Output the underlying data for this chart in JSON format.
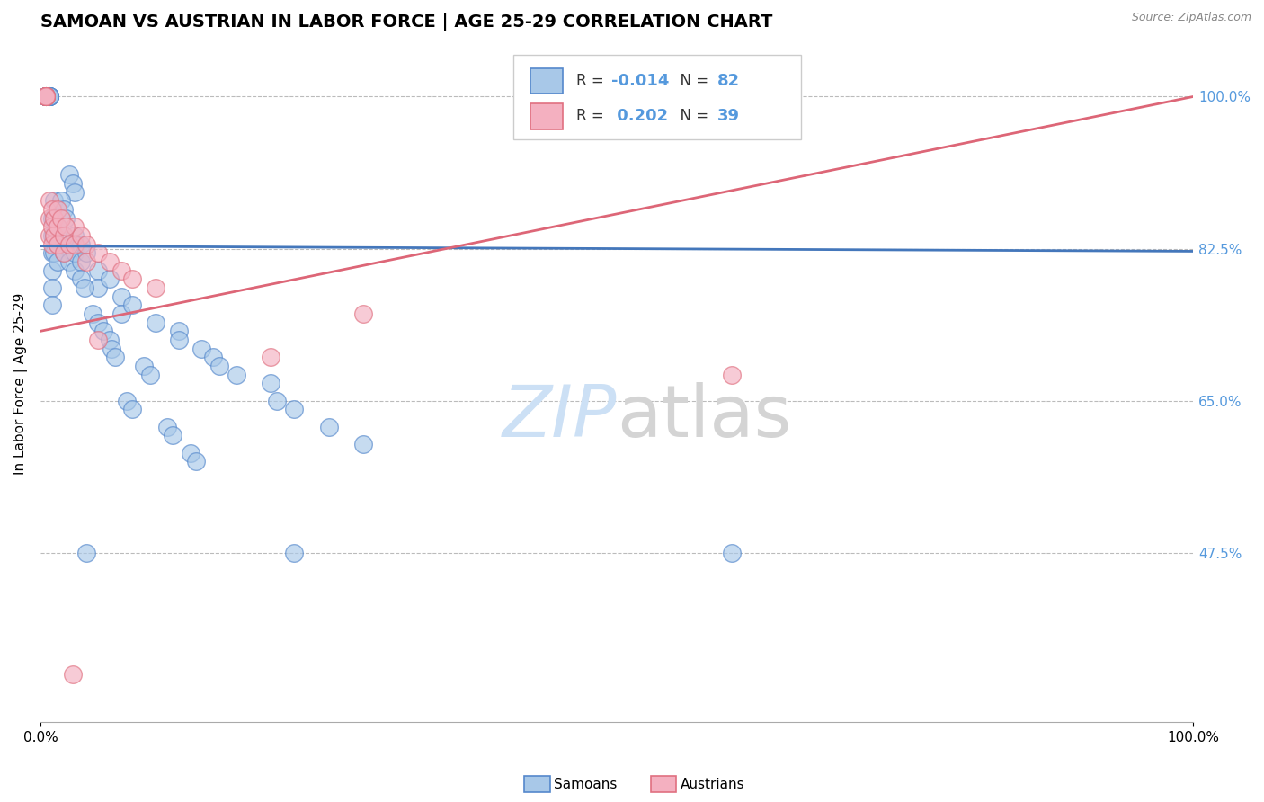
{
  "title": "SAMOAN VS AUSTRIAN IN LABOR FORCE | AGE 25-29 CORRELATION CHART",
  "source": "Source: ZipAtlas.com",
  "ylabel": "In Labor Force | Age 25-29",
  "ytick_values": [
    1.0,
    0.825,
    0.65,
    0.475
  ],
  "ytick_labels": [
    "100.0%",
    "82.5%",
    "65.0%",
    "47.5%"
  ],
  "xlim": [
    0.0,
    1.0
  ],
  "ylim": [
    0.28,
    1.06
  ],
  "samoan_face_color": "#a8c8e8",
  "samoan_edge_color": "#5588cc",
  "austrian_face_color": "#f4b0c0",
  "austrian_edge_color": "#e07080",
  "samoan_line_color": "#4477bb",
  "austrian_line_color": "#dd6677",
  "grid_color": "#bbbbbb",
  "background_color": "#ffffff",
  "right_tick_color": "#5599dd",
  "title_fontsize": 14,
  "label_fontsize": 11,
  "tick_fontsize": 11,
  "samoans_x": [
    0.005,
    0.005,
    0.005,
    0.005,
    0.005,
    0.005,
    0.005,
    0.005,
    0.005,
    0.005,
    0.008,
    0.008,
    0.008,
    0.008,
    0.008,
    0.008,
    0.008,
    0.01,
    0.01,
    0.01,
    0.01,
    0.01,
    0.01,
    0.012,
    0.012,
    0.012,
    0.012,
    0.015,
    0.015,
    0.015,
    0.02,
    0.02,
    0.025,
    0.025,
    0.03,
    0.03,
    0.03,
    0.035,
    0.035,
    0.04,
    0.05,
    0.05,
    0.06,
    0.07,
    0.07,
    0.08,
    0.1,
    0.12,
    0.12,
    0.14,
    0.15,
    0.155,
    0.17,
    0.2,
    0.205,
    0.22,
    0.25,
    0.28,
    0.04,
    0.22,
    0.6,
    0.025,
    0.028,
    0.03,
    0.018,
    0.02,
    0.022,
    0.045,
    0.05,
    0.055,
    0.06,
    0.035,
    0.038,
    0.062,
    0.065,
    0.09,
    0.095,
    0.075,
    0.08,
    0.11,
    0.115,
    0.13,
    0.135
  ],
  "samoans_y": [
    1.0,
    1.0,
    1.0,
    1.0,
    1.0,
    1.0,
    1.0,
    1.0,
    1.0,
    1.0,
    1.0,
    1.0,
    1.0,
    1.0,
    1.0,
    1.0,
    1.0,
    0.86,
    0.84,
    0.82,
    0.8,
    0.78,
    0.76,
    0.88,
    0.86,
    0.84,
    0.82,
    0.85,
    0.83,
    0.81,
    0.84,
    0.82,
    0.83,
    0.81,
    0.84,
    0.82,
    0.8,
    0.83,
    0.81,
    0.82,
    0.8,
    0.78,
    0.79,
    0.77,
    0.75,
    0.76,
    0.74,
    0.73,
    0.72,
    0.71,
    0.7,
    0.69,
    0.68,
    0.67,
    0.65,
    0.64,
    0.62,
    0.6,
    0.475,
    0.475,
    0.475,
    0.91,
    0.9,
    0.89,
    0.88,
    0.87,
    0.86,
    0.75,
    0.74,
    0.73,
    0.72,
    0.79,
    0.78,
    0.71,
    0.7,
    0.69,
    0.68,
    0.65,
    0.64,
    0.62,
    0.61,
    0.59,
    0.58
  ],
  "austrians_x": [
    0.005,
    0.005,
    0.005,
    0.005,
    0.005,
    0.005,
    0.005,
    0.005,
    0.008,
    0.008,
    0.008,
    0.01,
    0.01,
    0.01,
    0.012,
    0.012,
    0.015,
    0.015,
    0.02,
    0.02,
    0.025,
    0.03,
    0.03,
    0.035,
    0.04,
    0.04,
    0.05,
    0.06,
    0.07,
    0.08,
    0.1,
    0.28,
    0.05,
    0.2,
    0.6,
    0.015,
    0.018,
    0.022,
    0.028
  ],
  "austrians_y": [
    1.0,
    1.0,
    1.0,
    1.0,
    1.0,
    1.0,
    1.0,
    1.0,
    0.88,
    0.86,
    0.84,
    0.87,
    0.85,
    0.83,
    0.86,
    0.84,
    0.85,
    0.83,
    0.84,
    0.82,
    0.83,
    0.85,
    0.83,
    0.84,
    0.83,
    0.81,
    0.82,
    0.81,
    0.8,
    0.79,
    0.78,
    0.75,
    0.72,
    0.7,
    0.68,
    0.87,
    0.86,
    0.85,
    0.335
  ],
  "samoan_trend": [
    -0.014,
    0.8285
  ],
  "austrian_trend": [
    0.202,
    0.72
  ]
}
